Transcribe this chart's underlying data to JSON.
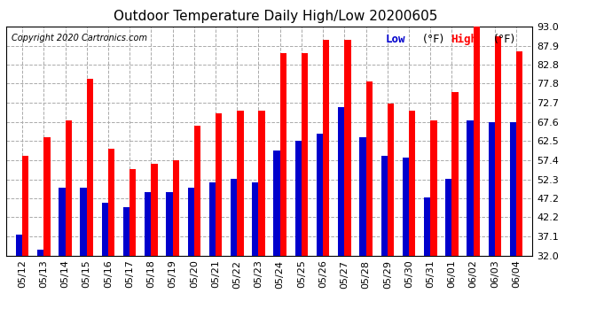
{
  "title": "Outdoor Temperature Daily High/Low 20200605",
  "copyright": "Copyright 2020 Cartronics.com",
  "dates": [
    "05/12",
    "05/13",
    "05/14",
    "05/15",
    "05/16",
    "05/17",
    "05/18",
    "05/19",
    "05/20",
    "05/21",
    "05/22",
    "05/23",
    "05/24",
    "05/25",
    "05/26",
    "05/27",
    "05/28",
    "05/29",
    "05/30",
    "05/31",
    "06/01",
    "06/02",
    "06/03",
    "06/04"
  ],
  "highs": [
    58.5,
    63.5,
    68.0,
    79.0,
    60.5,
    55.0,
    56.5,
    57.5,
    66.5,
    70.0,
    70.5,
    70.5,
    86.0,
    86.0,
    89.5,
    89.5,
    78.5,
    72.5,
    70.5,
    68.0,
    75.5,
    93.0,
    90.5,
    86.5
  ],
  "lows": [
    37.5,
    33.5,
    50.0,
    50.0,
    46.0,
    45.0,
    49.0,
    49.0,
    50.0,
    51.5,
    52.5,
    51.5,
    60.0,
    62.5,
    64.5,
    71.5,
    63.5,
    58.5,
    58.0,
    47.5,
    52.5,
    68.0,
    67.5,
    67.5
  ],
  "high_color": "#FF0000",
  "low_color": "#0000CC",
  "ylim_low": 32.0,
  "ylim_high": 93.0,
  "ytick_values": [
    32.0,
    37.1,
    42.2,
    47.2,
    52.3,
    57.4,
    62.5,
    67.6,
    72.7,
    77.8,
    82.8,
    87.9,
    93.0
  ],
  "background_color": "#ffffff",
  "grid_color": "#aaaaaa",
  "title_fontsize": 11,
  "copyright_fontsize": 7,
  "legend_fontsize": 9,
  "tick_fontsize": 8,
  "bar_width": 0.3,
  "fig_width": 6.9,
  "fig_height": 3.75,
  "dpi": 100
}
